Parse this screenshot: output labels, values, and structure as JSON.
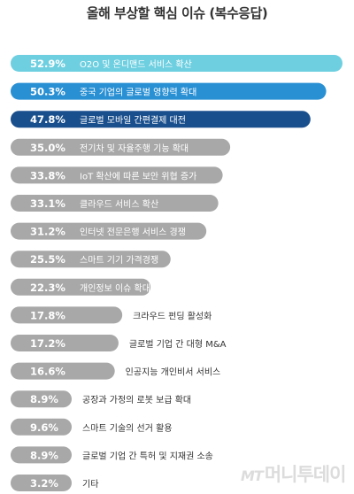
{
  "chart_data": {
    "type": "bar",
    "title": "올해 부상할 핵심 이슈 (복수응답)",
    "categories": [
      "O2O 및 온디맨드 서비스 확산",
      "중국 기업의 글로벌 영향력 확대",
      "글로벌 모바일 간편결제 대전",
      "전기차 및 자율주행 기능 확대",
      "IoT 확산에 따른 보안 위협 증가",
      "클라우드 서비스 확산",
      "인터넷 전문은행 서비스 경쟁",
      "스마트 기기 가격경쟁",
      "개인정보 이슈 확대",
      "크라우드 펀딩 활성화",
      "글로벌 기업 간 대형 M&A",
      "인공지능 개인비서 서비스",
      "공장과 가정의 로봇 보급 확대",
      "스마트 기술의 선거 활용",
      "글로벌 기업 간 특허 및 지재권 소송",
      "기타"
    ],
    "values": [
      52.9,
      50.3,
      47.8,
      35.0,
      33.8,
      33.1,
      31.2,
      25.5,
      22.3,
      17.8,
      17.2,
      16.6,
      8.9,
      9.6,
      8.9,
      3.2
    ],
    "value_labels": [
      "52.9%",
      "50.3%",
      "47.8%",
      "35.0%",
      "33.8%",
      "33.1%",
      "31.2%",
      "25.5%",
      "22.3%",
      "17.8%",
      "17.2%",
      "16.6%",
      "8.9%",
      "9.6%",
      "8.9%",
      "3.2%"
    ],
    "colors": [
      "#6dcfe0",
      "#2a90d4",
      "#1a4f8d",
      "#a8a8a8",
      "#a8a8a8",
      "#a8a8a8",
      "#a8a8a8",
      "#a8a8a8",
      "#a8a8a8",
      "#a8a8a8",
      "#a8a8a8",
      "#a8a8a8",
      "#a8a8a8",
      "#a8a8a8",
      "#a8a8a8",
      "#a8a8a8"
    ],
    "label_colors": [
      "#ffffff",
      "#ffffff",
      "#ffffff",
      "#ffffff",
      "#ffffff",
      "#ffffff",
      "#ffffff",
      "#ffffff",
      "#ffffff",
      "#333333",
      "#333333",
      "#333333",
      "#333333",
      "#333333",
      "#333333",
      "#333333"
    ],
    "xlim": [
      0,
      52.9
    ],
    "grid": false
  },
  "watermark": {
    "brand": "MT",
    "name": "머니투데이"
  }
}
